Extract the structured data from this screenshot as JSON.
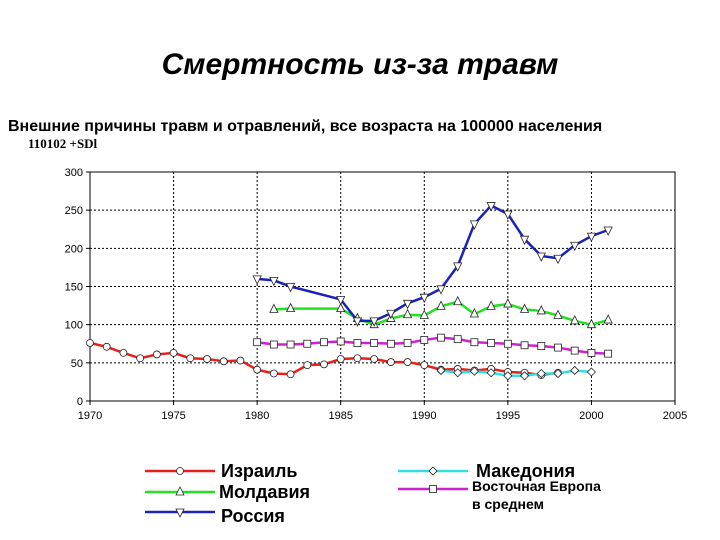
{
  "title": "Смертность из-за травм",
  "subtitle": "Внешние причины травм и отравлений, все возраста на 100000 населения",
  "code": "110102 +SDl",
  "chart_data": {
    "type": "line",
    "xlim": [
      1970,
      2005
    ],
    "ylim": [
      0,
      300
    ],
    "xticks": [
      1970,
      1975,
      1980,
      1985,
      1990,
      1995,
      2000,
      2005
    ],
    "yticks": [
      0,
      50,
      100,
      150,
      200,
      250,
      300
    ],
    "grid": true,
    "legend_position": "bottom",
    "series": [
      {
        "name": "Израиль",
        "color": "#e8201a",
        "marker": "circle",
        "points": [
          [
            1970,
            76
          ],
          [
            1971,
            71
          ],
          [
            1972,
            63
          ],
          [
            1973,
            56
          ],
          [
            1974,
            61
          ],
          [
            1975,
            63
          ],
          [
            1976,
            56
          ],
          [
            1977,
            55
          ],
          [
            1978,
            52
          ],
          [
            1979,
            53
          ],
          [
            1980,
            41
          ],
          [
            1981,
            36
          ],
          [
            1982,
            35
          ],
          [
            1983,
            47
          ],
          [
            1984,
            48
          ],
          [
            1985,
            55
          ],
          [
            1986,
            56
          ],
          [
            1987,
            55
          ],
          [
            1988,
            51
          ],
          [
            1989,
            51
          ],
          [
            1990,
            47
          ],
          [
            1991,
            41
          ],
          [
            1992,
            42
          ],
          [
            1993,
            40
          ],
          [
            1994,
            42
          ],
          [
            1995,
            38
          ],
          [
            1996,
            37
          ],
          [
            1997,
            34
          ],
          [
            1998,
            37
          ]
        ]
      },
      {
        "name": "Молдавия",
        "color": "#22e022",
        "marker": "triangle-up",
        "points": [
          [
            1981,
            120
          ],
          [
            1982,
            121
          ],
          [
            1985,
            121
          ],
          [
            1986,
            108
          ],
          [
            1987,
            100
          ],
          [
            1988,
            108
          ],
          [
            1989,
            113
          ],
          [
            1990,
            112
          ],
          [
            1991,
            124
          ],
          [
            1992,
            130
          ],
          [
            1993,
            114
          ],
          [
            1994,
            124
          ],
          [
            1995,
            127
          ],
          [
            1996,
            120
          ],
          [
            1997,
            118
          ],
          [
            1998,
            112
          ],
          [
            1999,
            105
          ],
          [
            2000,
            100
          ],
          [
            2001,
            106
          ]
        ]
      },
      {
        "name": "Россия",
        "color": "#1a22b8",
        "marker": "triangle-down",
        "points": [
          [
            1980,
            160
          ],
          [
            1981,
            158
          ],
          [
            1982,
            150
          ],
          [
            1985,
            133
          ],
          [
            1986,
            105
          ],
          [
            1987,
            105
          ],
          [
            1988,
            115
          ],
          [
            1989,
            128
          ],
          [
            1990,
            136
          ],
          [
            1991,
            147
          ],
          [
            1992,
            177
          ],
          [
            1993,
            232
          ],
          [
            1994,
            256
          ],
          [
            1995,
            245
          ],
          [
            1996,
            212
          ],
          [
            1997,
            190
          ],
          [
            1998,
            187
          ],
          [
            1999,
            204
          ],
          [
            2000,
            216
          ],
          [
            2001,
            224
          ]
        ]
      },
      {
        "name": "Македония",
        "color": "#30e0e0",
        "marker": "diamond",
        "points": [
          [
            1991,
            40
          ],
          [
            1992,
            37
          ],
          [
            1993,
            39
          ],
          [
            1994,
            37
          ],
          [
            1995,
            33
          ],
          [
            1996,
            33
          ],
          [
            1997,
            36
          ],
          [
            1998,
            36
          ],
          [
            1999,
            40
          ],
          [
            2000,
            38
          ]
        ]
      },
      {
        "name": "Восточная Европа в среднем",
        "legend_lines": [
          "Восточная Европа",
          "в среднем"
        ],
        "color": "#d020d0",
        "marker": "square",
        "points": [
          [
            1980,
            77
          ],
          [
            1981,
            74
          ],
          [
            1982,
            74
          ],
          [
            1983,
            75
          ],
          [
            1984,
            77
          ],
          [
            1985,
            78
          ],
          [
            1986,
            76
          ],
          [
            1987,
            76
          ],
          [
            1988,
            75
          ],
          [
            1989,
            76
          ],
          [
            1990,
            80
          ],
          [
            1991,
            83
          ],
          [
            1992,
            81
          ],
          [
            1993,
            77
          ],
          [
            1994,
            76
          ],
          [
            1995,
            75
          ],
          [
            1996,
            73
          ],
          [
            1997,
            72
          ],
          [
            1998,
            70
          ],
          [
            1999,
            66
          ],
          [
            2000,
            63
          ],
          [
            2001,
            62
          ]
        ]
      }
    ]
  }
}
